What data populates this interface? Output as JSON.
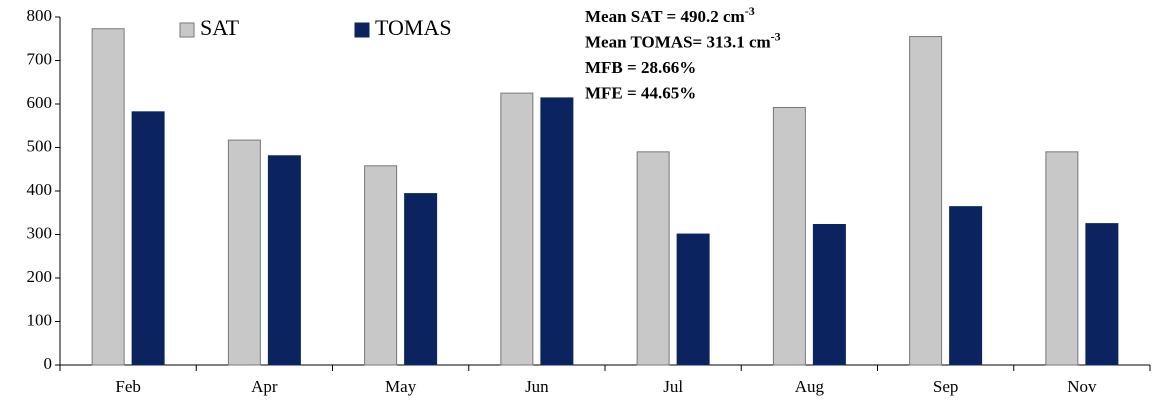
{
  "chart_data": {
    "type": "bar",
    "categories": [
      "Feb",
      "Apr",
      "May",
      "Jun",
      "Jul",
      "Aug",
      "Sep",
      "Nov"
    ],
    "series": [
      {
        "name": "SAT",
        "color": "#c8c8c8",
        "values": [
          773,
          517,
          458,
          625,
          490,
          592,
          755,
          490
        ]
      },
      {
        "name": "TOMAS",
        "color": "#0b2460",
        "values": [
          582,
          481,
          394,
          614,
          301,
          323,
          364,
          325
        ]
      }
    ],
    "ylim": [
      0,
      800
    ],
    "yticks": [
      0,
      100,
      200,
      300,
      400,
      500,
      600,
      700,
      800
    ],
    "grid": false,
    "legend": "upper left",
    "annotations": [
      {
        "text": "Mean SAT = 490.2 cm",
        "sup": "-3"
      },
      {
        "text": "Mean TOMAS= 313.1 cm",
        "sup": "-3"
      },
      {
        "text": "MFB = 28.66%"
      },
      {
        "text": "MFE = 44.65%"
      }
    ]
  }
}
